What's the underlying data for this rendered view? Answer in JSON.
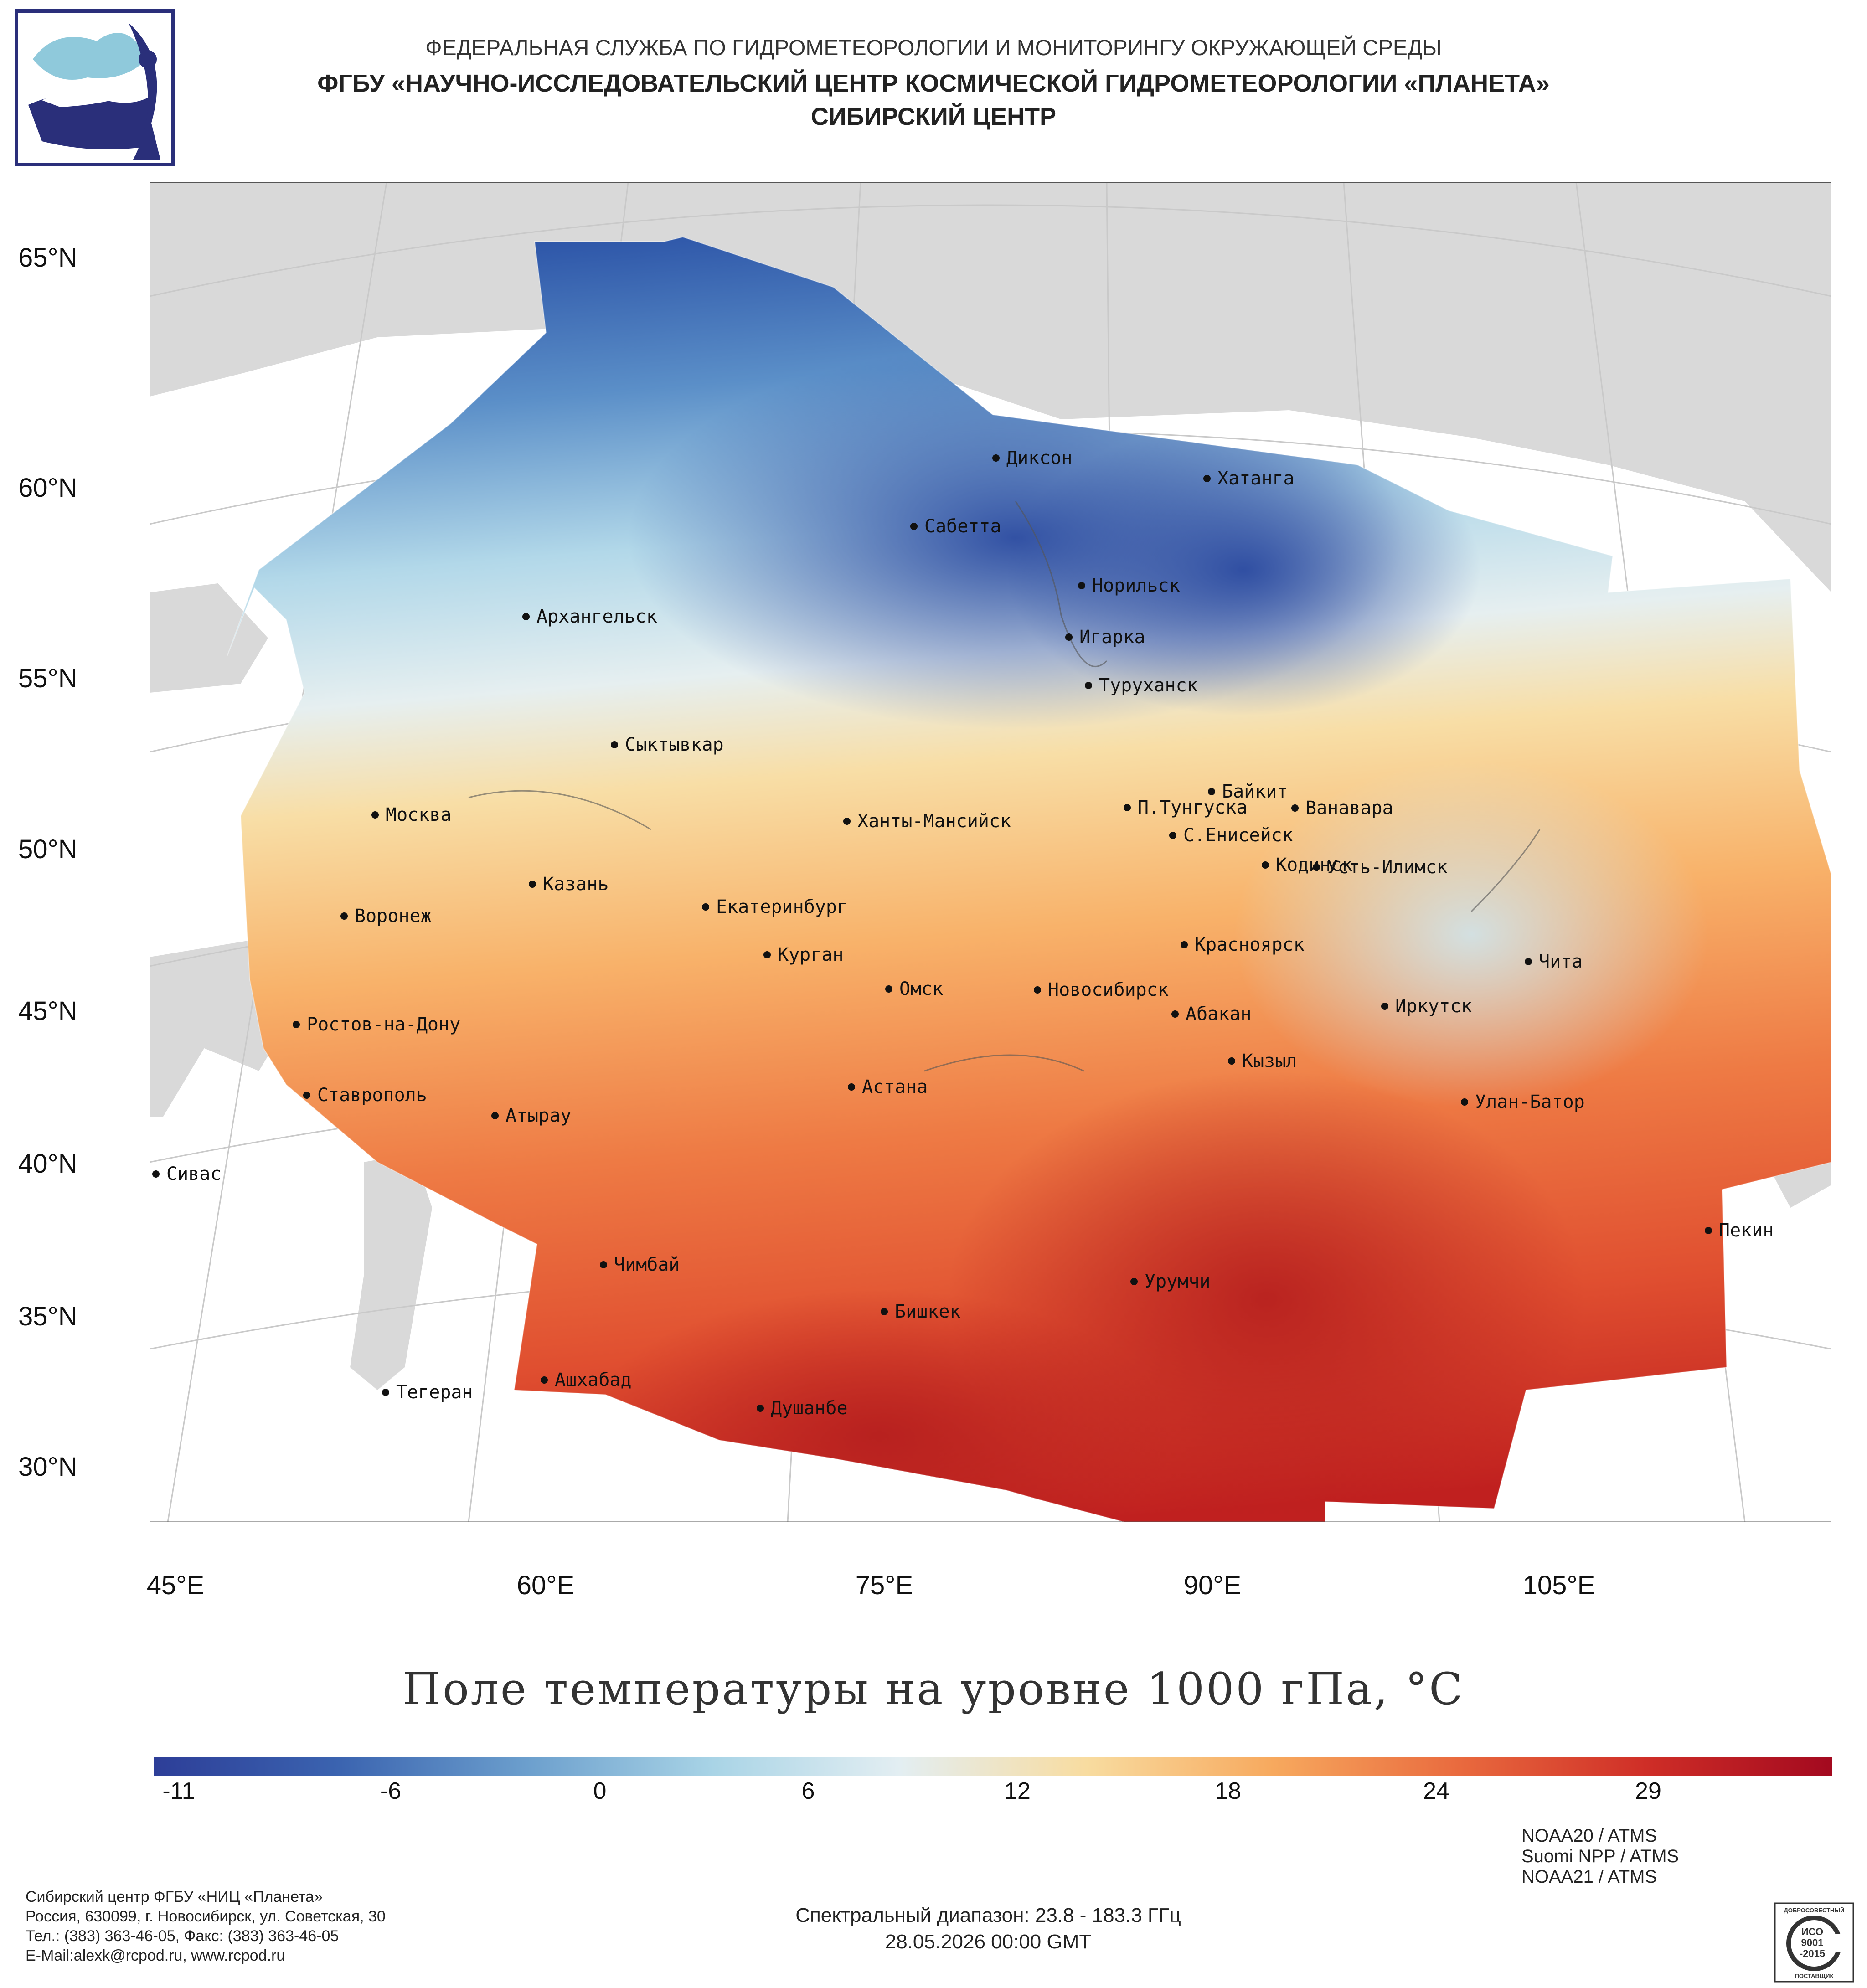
{
  "header": {
    "org_line1": "ФЕДЕРАЛЬНАЯ СЛУЖБА ПО ГИДРОМЕТЕОРОЛОГИИ И МОНИТОРИНГУ ОКРУЖАЮЩЕЙ СРЕДЫ",
    "org_line2": "ФГБУ «НАУЧНО-ИССЛЕДОВАТЕЛЬСКИЙ ЦЕНТР КОСМИЧЕСКОЙ ГИДРОМЕТЕОРОЛОГИИ «ПЛАНЕТА»",
    "org_line3": "СИБИРСКИЙ ЦЕНТР"
  },
  "map": {
    "lat_labels": [
      "65°N",
      "60°N",
      "55°N",
      "50°N",
      "45°N",
      "40°N",
      "35°N",
      "30°N"
    ],
    "lon_labels": [
      "45°E",
      "60°E",
      "75°E",
      "90°E",
      "105°E"
    ],
    "cities": [
      "Диксон",
      "Хатанга",
      "Сабетта",
      "Норильск",
      "Игарка",
      "Туруханск",
      "Архангельск",
      "Сыктывкар",
      "Москва",
      "Байкит",
      "П.Тунгуска",
      "Ванавара",
      "Ханты-Мансийск",
      "С.Енисейск",
      "Кодинск",
      "Усть-Илимск",
      "Казань",
      "Екатеринбург",
      "Воронеж",
      "Красноярск",
      "Курган",
      "Чита",
      "Омск",
      "Новосибирск",
      "Ростов-на-Дону",
      "Иркутск",
      "Абакан",
      "Кызыл",
      "Астана",
      "Ставрополь",
      "Улан-Батор",
      "Атырау",
      "Сивас",
      "Пекин",
      "Чимбай",
      "Урумчи",
      "Бишкек",
      "Ашхабад",
      "Тегеран",
      "Душанбе"
    ]
  },
  "product_title": "Поле температуры на уровне 1000 гПа, °C",
  "colorbar": {
    "ticks": [
      "-11",
      "-6",
      "0",
      "6",
      "12",
      "18",
      "24",
      "29"
    ],
    "colors": [
      "#2d3e98",
      "#3b64b0",
      "#6c9fcd",
      "#a9d4e6",
      "#e3eef2",
      "#f8dca0",
      "#f7a95e",
      "#e96a3e",
      "#cf2e27",
      "#a3091f"
    ]
  },
  "footer": {
    "org_name": "Сибирский центр ФГБУ «НИЦ «Планета»",
    "address": "Россия, 630099, г. Новосибирск, ул. Советская, 30",
    "phones": "Тел.: (383) 363-46-05, Факс: (383) 363-46-05",
    "email": "E-Mail:alexk@rcpod.ru, www.rcpod.ru",
    "spectral": "Спектральный диапазон: 23.8 - 183.3 ГГц",
    "datetime": "28.05.2026 00:00 GMT",
    "satellites": [
      "NOAA20 / ATMS",
      "Suomi NPP / ATMS",
      "NOAA21 / ATMS"
    ],
    "iso_badge": {
      "top": "ДОБРОСОВЕСТНЫЙ",
      "line1": "ИСО",
      "line2": "9001",
      "line3": "-2015",
      "bottom": "ПОСТАВЩИК"
    }
  }
}
